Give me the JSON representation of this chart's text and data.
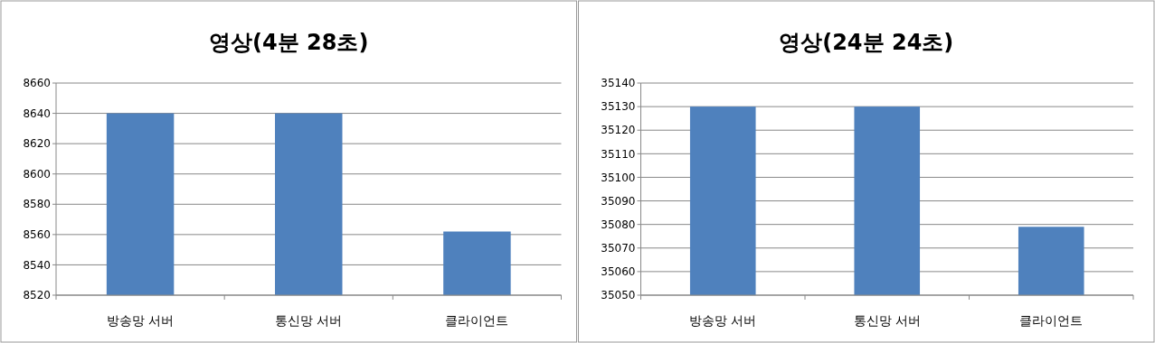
{
  "chart_data": [
    {
      "type": "bar",
      "title": "영상(4분 28초)",
      "categories": [
        "방송망 서버",
        "통신망 서버",
        "클라이언트"
      ],
      "values": [
        8640,
        8640,
        8562
      ],
      "color": "#4f81bd",
      "ylim": [
        8520,
        8660
      ],
      "yticks": [
        8520,
        8540,
        8560,
        8580,
        8600,
        8620,
        8640,
        8660
      ],
      "grid": "y"
    },
    {
      "type": "bar",
      "title": "영상(24분 24초)",
      "categories": [
        "방송망 서버",
        "통신망 서버",
        "클라이언트"
      ],
      "values": [
        35130,
        35130,
        35079
      ],
      "color": "#4f81bd",
      "ylim": [
        35050,
        35140
      ],
      "yticks": [
        35050,
        35060,
        35070,
        35080,
        35090,
        35100,
        35110,
        35120,
        35130,
        35140
      ],
      "grid": "y"
    }
  ]
}
